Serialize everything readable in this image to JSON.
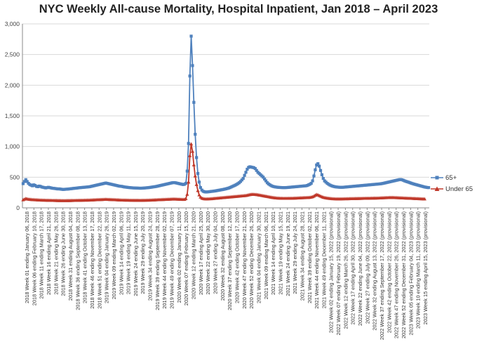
{
  "chart_data": {
    "type": "line",
    "title": "NYC Weekly All-cause Mortality, Hospital Inpatient, Jan 2018 – April 2023",
    "xlabel": "",
    "ylabel": "",
    "ylim": [
      0,
      3000
    ],
    "yticks": [
      "0",
      "500",
      "1,000",
      "1,500",
      "2,000",
      "2,500",
      "3,000"
    ],
    "grid": "horizontal",
    "legend_position": "right",
    "xtick_labels": [
      "2018 Week 01 ending January 06, 2018",
      "2018 Week 06 ending February 10, 2018",
      "2018 Week 11 ending March 17, 2018",
      "2018 Week 16 ending April 21, 2018",
      "2018 Week 21 ending May 26, 2018",
      "2018 Week 26 ending June 30, 2018",
      "2018 Week 31 ending August 04, 2018",
      "2018 Week 36 ending September 08, 2018",
      "2018 Week 41 ending October 13, 2018",
      "2018 Week 46 ending November 17, 2018",
      "2018 Week 51 ending December 22, 2018",
      "2019 Week 04 ending January 26, 2019",
      "2019 Week 09 ending March 02, 2019",
      "2019 Week 14 ending April 06, 2019",
      "2019 Week 19 ending May 11, 2019",
      "2019 Week 24 ending June 15, 2019",
      "2019 Week 29 ending July 20, 2019",
      "2019 Week 34 ending August 24, 2019",
      "2019 Week 39 ending September 28, 2019",
      "2019 Week 44 ending November 02, 2019",
      "2019 Week 49 ending December 07, 2019",
      "2020 Week 02 ending January 11, 2020",
      "2020 Week 07 ending February 15, 2020",
      "2020 Week 12 ending March 21, 2020",
      "2020 Week 17 ending April 25, 2020",
      "2020 Week 22 ending May 30, 2020",
      "2020 Week 27 ending July 04, 2020",
      "2020 Week 32 ending August 08, 2020",
      "2020 Week 37 ending September 12, 2020",
      "2020 Week 42 ending October 17, 2020",
      "2020 Week 47 ending November 21, 2020",
      "2020 Week 52 ending December 26, 2020",
      "2021 Week 04 ending January 30, 2021",
      "2021 Week 09 ending March 06, 2021",
      "2021 Week 14 ending April 10, 2021",
      "2021 Week 19 ending May 15, 2021",
      "2021 Week 24 ending June 19, 2021",
      "2021 Week 29 ending July 24, 2021",
      "2021 Week 34 ending August 28, 2021",
      "2021 Week 39 ending October 02, 2021",
      "2021 Week 44 ending November 06, 2021",
      "2021 Week 49 ending December 11, 2021",
      "2022 Week 02 ending January 15, 2022 (provisional)",
      "2022 Week 07 ending February 19, 2022 (provisional)",
      "2022 Week 12 ending March 26, 2022 (provisional)",
      "2022 Week 17 ending April 30, 2022 (provisional)",
      "2022 Week 22 ending June 04, 2022 (provisional)",
      "2022 Week 27 ending July 09, 2022 (provisional)",
      "2022 Week 32 ending August 13, 2022 (provisional)",
      "2022 Week 37 ending September 17, 2022 (provisional)",
      "2022 Week 42 ending October 22, 2022 (provisional)",
      "2022 Week 47 ending November 26, 2022 (provisional)",
      "2022 Week 52 ending December 31, 2022 (provisional)",
      "2023 Week 05 ending February 04, 2023 (provisional)",
      "2023 Week 10 ending March 11, 2023 (provisional)",
      "2023 Week 15 ending April 15, 2023 (provisional)"
    ],
    "series": [
      {
        "name": "65+",
        "color": "#4f81bd",
        "marker": "square",
        "values": [
          395,
          430,
          460,
          430,
          400,
          380,
          370,
          360,
          375,
          365,
          350,
          345,
          355,
          350,
          340,
          335,
          330,
          325,
          330,
          335,
          330,
          325,
          320,
          318,
          315,
          312,
          308,
          310,
          306,
          303,
          300,
          302,
          304,
          305,
          307,
          310,
          312,
          315,
          318,
          320,
          322,
          325,
          328,
          330,
          332,
          334,
          336,
          338,
          340,
          342,
          345,
          350,
          355,
          360,
          365,
          370,
          375,
          380,
          385,
          390,
          395,
          400,
          405,
          400,
          395,
          390,
          385,
          380,
          375,
          370,
          365,
          360,
          355,
          352,
          350,
          345,
          340,
          338,
          335,
          332,
          330,
          328,
          326,
          325,
          324,
          323,
          322,
          321,
          320,
          321,
          322,
          324,
          326,
          328,
          330,
          333,
          336,
          340,
          343,
          346,
          350,
          355,
          360,
          365,
          370,
          375,
          380,
          385,
          390,
          395,
          400,
          405,
          410,
          412,
          410,
          405,
          400,
          395,
          390,
          385,
          380,
          385,
          400,
          600,
          1050,
          2150,
          2800,
          2320,
          1720,
          1200,
          820,
          560,
          420,
          330,
          290,
          270,
          262,
          258,
          260,
          262,
          265,
          268,
          270,
          273,
          276,
          280,
          284,
          288,
          292,
          296,
          300,
          305,
          310,
          316,
          322,
          330,
          340,
          350,
          360,
          370,
          382,
          395,
          410,
          430,
          455,
          480,
          530,
          580,
          630,
          660,
          670,
          665,
          660,
          655,
          640,
          610,
          580,
          560,
          540,
          520,
          500,
          470,
          440,
          410,
          390,
          375,
          362,
          352,
          346,
          341,
          338,
          335,
          333,
          332,
          331,
          330,
          330,
          331,
          332,
          334,
          336,
          338,
          340,
          342,
          344,
          346,
          348,
          350,
          352,
          354,
          356,
          358,
          360,
          365,
          375,
          385,
          400,
          440,
          520,
          620,
          700,
          720,
          680,
          610,
          540,
          480,
          440,
          420,
          400,
          385,
          372,
          362,
          354,
          348,
          343,
          340,
          338,
          336,
          335,
          335,
          336,
          338,
          340,
          342,
          344,
          346,
          348,
          350,
          352,
          354,
          356,
          358,
          360,
          362,
          364,
          366,
          368,
          370,
          372,
          374,
          376,
          378,
          380,
          382,
          384,
          386,
          388,
          390,
          392,
          396,
          400,
          405,
          410,
          415,
          420,
          425,
          430,
          435,
          440,
          445,
          450,
          455,
          460,
          462,
          458,
          450,
          440,
          432,
          425,
          418,
          410,
          402,
          395,
          388,
          382,
          376,
          370,
          364,
          358,
          352,
          346,
          340,
          336,
          332,
          330
        ]
      },
      {
        "name": "Under 65",
        "color": "#c0392b",
        "marker": "triangle",
        "values": [
          130,
          140,
          150,
          145,
          140,
          138,
          135,
          133,
          132,
          130,
          130,
          128,
          127,
          126,
          125,
          124,
          124,
          123,
          122,
          122,
          121,
          121,
          120,
          120,
          119,
          119,
          118,
          118,
          118,
          117,
          117,
          117,
          117,
          118,
          118,
          118,
          119,
          119,
          120,
          120,
          121,
          121,
          122,
          122,
          123,
          123,
          124,
          124,
          125,
          125,
          126,
          127,
          128,
          129,
          130,
          131,
          132,
          133,
          134,
          135,
          136,
          137,
          138,
          137,
          136,
          135,
          134,
          133,
          132,
          131,
          130,
          129,
          128,
          127,
          126,
          126,
          125,
          125,
          124,
          124,
          123,
          123,
          123,
          122,
          122,
          122,
          122,
          121,
          121,
          122,
          122,
          123,
          123,
          124,
          124,
          125,
          126,
          127,
          128,
          129,
          130,
          131,
          132,
          133,
          134,
          135,
          136,
          137,
          138,
          139,
          140,
          141,
          142,
          143,
          142,
          141,
          140,
          139,
          138,
          137,
          136,
          138,
          150,
          220,
          420,
          850,
          1040,
          920,
          700,
          520,
          380,
          280,
          210,
          175,
          158,
          150,
          146,
          144,
          145,
          146,
          147,
          148,
          150,
          152,
          154,
          156,
          158,
          160,
          162,
          164,
          166,
          168,
          170,
          172,
          174,
          176,
          178,
          180,
          182,
          184,
          186,
          188,
          190,
          192,
          194,
          196,
          198,
          200,
          205,
          210,
          215,
          218,
          220,
          219,
          217,
          215,
          212,
          208,
          204,
          200,
          196,
          192,
          188,
          184,
          180,
          176,
          172,
          168,
          165,
          162,
          160,
          158,
          157,
          156,
          155,
          154,
          154,
          154,
          154,
          155,
          155,
          156,
          156,
          157,
          158,
          159,
          160,
          161,
          162,
          163,
          164,
          165,
          166,
          167,
          168,
          170,
          174,
          180,
          190,
          205,
          215,
          210,
          200,
          190,
          180,
          172,
          166,
          162,
          158,
          155,
          152,
          150,
          148,
          147,
          146,
          145,
          145,
          145,
          145,
          146,
          146,
          147,
          147,
          148,
          148,
          149,
          149,
          150,
          150,
          151,
          151,
          152,
          152,
          153,
          153,
          154,
          154,
          155,
          155,
          156,
          156,
          157,
          157,
          158,
          158,
          159,
          159,
          160,
          161,
          162,
          163,
          164,
          165,
          166,
          167,
          168,
          168,
          168,
          167,
          166,
          165,
          164,
          163,
          162,
          161,
          160,
          159,
          158,
          157,
          156,
          155,
          154,
          153,
          152,
          151,
          150,
          149,
          148,
          147,
          146,
          145,
          144
        ]
      }
    ]
  }
}
